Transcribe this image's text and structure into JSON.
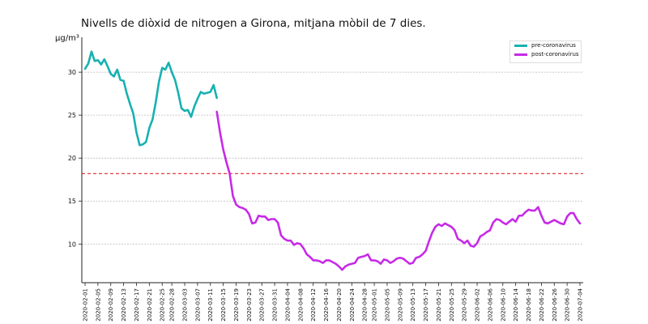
{
  "colors": {
    "pre": "#17b1b1",
    "post": "#c72ae8",
    "threshold": "#e0262b",
    "grid": "#b8b8b8",
    "axis": "#222222"
  },
  "chart_data": {
    "type": "line",
    "title": "Nivells de diòxid de nitrogen a Girona, mitjana mòbil de 7 dies.",
    "xlabel": "",
    "ylabel": "µg/m³",
    "ylim": [
      5.5,
      33.5
    ],
    "y_ticks": [
      10,
      15,
      20,
      25,
      30
    ],
    "grid": "horizontal",
    "legend_position": "top-right",
    "x_start": "2020-02-01",
    "x_end": "2020-07-04",
    "x_ticks": [
      "2020-02-01",
      "2020-02-05",
      "2020-02-09",
      "2020-02-13",
      "2020-02-17",
      "2020-02-21",
      "2020-02-25",
      "2020-02-28",
      "2020-03-03",
      "2020-03-07",
      "2020-03-11",
      "2020-03-15",
      "2020-03-19",
      "2020-03-23",
      "2020-03-27",
      "2020-03-31",
      "2020-04-04",
      "2020-04-08",
      "2020-04-12",
      "2020-04-16",
      "2020-04-20",
      "2020-04-24",
      "2020-04-28",
      "2020-05-01",
      "2020-05-05",
      "2020-05-09",
      "2020-05-13",
      "2020-05-17",
      "2020-05-21",
      "2020-05-25",
      "2020-05-29",
      "2020-06-02",
      "2020-06-06",
      "2020-06-10",
      "2020-06-14",
      "2020-06-18",
      "2020-06-22",
      "2020-06-26",
      "2020-06-30",
      "2020-07-04"
    ],
    "threshold": 18.2,
    "series": [
      {
        "name": "pre-coronavirus",
        "x": [
          "2020-02-01",
          "2020-02-02",
          "2020-02-03",
          "2020-02-04",
          "2020-02-05",
          "2020-02-06",
          "2020-02-07",
          "2020-02-08",
          "2020-02-09",
          "2020-02-10",
          "2020-02-11",
          "2020-02-12",
          "2020-02-13",
          "2020-02-14",
          "2020-02-15",
          "2020-02-16",
          "2020-02-17",
          "2020-02-18",
          "2020-02-19",
          "2020-02-20",
          "2020-02-21",
          "2020-02-22",
          "2020-02-23",
          "2020-02-24",
          "2020-02-25",
          "2020-02-26",
          "2020-02-27",
          "2020-02-28",
          "2020-02-29",
          "2020-03-01",
          "2020-03-02",
          "2020-03-03",
          "2020-03-04",
          "2020-03-05",
          "2020-03-06",
          "2020-03-07",
          "2020-03-08",
          "2020-03-09",
          "2020-03-10",
          "2020-03-11",
          "2020-03-12",
          "2020-03-13"
        ],
        "values": [
          30.4,
          31.0,
          32.4,
          31.3,
          31.4,
          30.9,
          31.5,
          30.7,
          29.8,
          29.5,
          30.3,
          29.1,
          29.0,
          27.5,
          26.3,
          25.2,
          23.0,
          21.5,
          21.6,
          21.9,
          23.5,
          24.5,
          26.5,
          28.9,
          30.5,
          30.3,
          31.1,
          30.0,
          29.1,
          27.6,
          25.8,
          25.5,
          25.6,
          24.8,
          26.0,
          26.9,
          27.7,
          27.5,
          27.6,
          27.7,
          28.5,
          27.0
        ]
      },
      {
        "name": "post-coronavirus",
        "x": [
          "2020-03-13",
          "2020-03-14",
          "2020-03-15",
          "2020-03-16",
          "2020-03-17",
          "2020-03-18",
          "2020-03-19",
          "2020-03-20",
          "2020-03-21",
          "2020-03-22",
          "2020-03-23",
          "2020-03-24",
          "2020-03-25",
          "2020-03-26",
          "2020-03-27",
          "2020-03-28",
          "2020-03-29",
          "2020-03-30",
          "2020-03-31",
          "2020-04-01",
          "2020-04-02",
          "2020-04-03",
          "2020-04-04",
          "2020-04-05",
          "2020-04-06",
          "2020-04-07",
          "2020-04-08",
          "2020-04-09",
          "2020-04-10",
          "2020-04-11",
          "2020-04-12",
          "2020-04-13",
          "2020-04-14",
          "2020-04-15",
          "2020-04-16",
          "2020-04-17",
          "2020-04-18",
          "2020-04-19",
          "2020-04-20",
          "2020-04-21",
          "2020-04-22",
          "2020-04-23",
          "2020-04-24",
          "2020-04-25",
          "2020-04-26",
          "2020-04-27",
          "2020-04-28",
          "2020-04-29",
          "2020-04-30",
          "2020-05-01",
          "2020-05-02",
          "2020-05-03",
          "2020-05-04",
          "2020-05-05",
          "2020-05-06",
          "2020-05-07",
          "2020-05-08",
          "2020-05-09",
          "2020-05-10",
          "2020-05-11",
          "2020-05-12",
          "2020-05-13",
          "2020-05-14",
          "2020-05-15",
          "2020-05-16",
          "2020-05-17",
          "2020-05-18",
          "2020-05-19",
          "2020-05-20",
          "2020-05-21",
          "2020-05-22",
          "2020-05-23",
          "2020-05-24",
          "2020-05-25",
          "2020-05-26",
          "2020-05-27",
          "2020-05-28",
          "2020-05-29",
          "2020-05-30",
          "2020-05-31",
          "2020-06-01",
          "2020-06-02",
          "2020-06-03",
          "2020-06-04",
          "2020-06-05",
          "2020-06-06",
          "2020-06-07",
          "2020-06-08",
          "2020-06-09",
          "2020-06-10",
          "2020-06-11",
          "2020-06-12",
          "2020-06-13",
          "2020-06-14",
          "2020-06-15",
          "2020-06-16",
          "2020-06-17",
          "2020-06-18",
          "2020-06-19",
          "2020-06-20",
          "2020-06-21",
          "2020-06-22",
          "2020-06-23",
          "2020-06-24",
          "2020-06-25",
          "2020-06-26",
          "2020-06-27",
          "2020-06-28",
          "2020-06-29",
          "2020-06-30",
          "2020-07-01",
          "2020-07-02",
          "2020-07-03",
          "2020-07-04"
        ],
        "values": [
          25.4,
          23.0,
          21.0,
          19.5,
          18.2,
          15.6,
          14.6,
          14.3,
          14.2,
          14.0,
          13.5,
          12.4,
          12.5,
          13.3,
          13.2,
          13.2,
          12.8,
          12.9,
          12.9,
          12.5,
          11.0,
          10.6,
          10.4,
          10.4,
          9.9,
          10.1,
          10.0,
          9.5,
          8.8,
          8.5,
          8.1,
          8.1,
          8.0,
          7.8,
          8.1,
          8.1,
          7.9,
          7.7,
          7.4,
          7.0,
          7.4,
          7.6,
          7.7,
          7.8,
          8.4,
          8.5,
          8.6,
          8.8,
          8.1,
          8.1,
          8.0,
          7.7,
          8.2,
          8.1,
          7.8,
          8.0,
          8.3,
          8.4,
          8.3,
          8.0,
          7.7,
          7.8,
          8.4,
          8.5,
          8.8,
          9.2,
          10.3,
          11.3,
          12.0,
          12.3,
          12.1,
          12.4,
          12.2,
          12.0,
          11.6,
          10.6,
          10.4,
          10.1,
          10.4,
          9.8,
          9.7,
          10.1,
          10.9,
          11.1,
          11.4,
          11.6,
          12.5,
          12.9,
          12.8,
          12.5,
          12.3,
          12.6,
          12.9,
          12.6,
          13.3,
          13.3,
          13.7,
          14.0,
          13.9,
          13.9,
          14.3,
          13.3,
          12.5,
          12.4,
          12.6,
          12.8,
          12.6,
          12.4,
          12.3,
          13.2,
          13.6,
          13.6,
          12.9,
          12.4
        ]
      }
    ]
  }
}
